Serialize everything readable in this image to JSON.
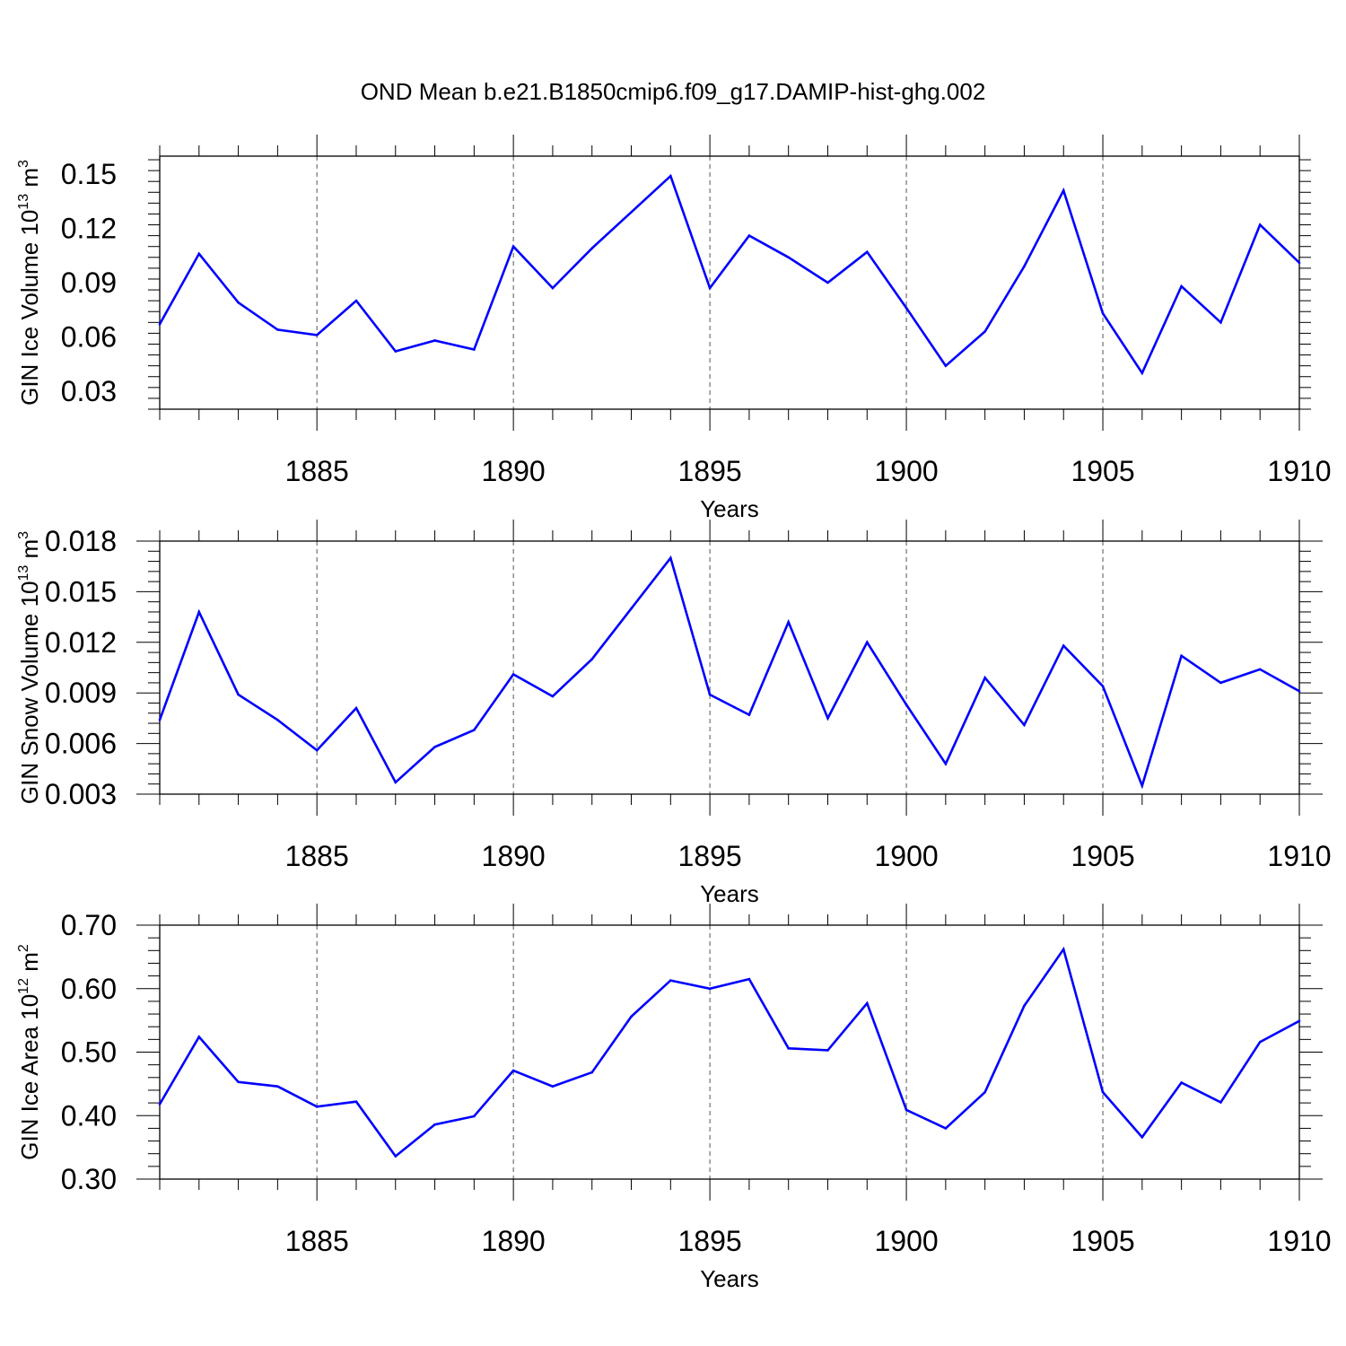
{
  "title": "OND Mean b.e21.B1850cmip6.f09_g17.DAMIP-hist-ghg.002",
  "colors": {
    "line": "#0000ff",
    "axis": "#000000",
    "grid": "#555555"
  },
  "chart_data": [
    {
      "type": "line",
      "xlabel": "Years",
      "ylabel": {
        "text": "GIN Ice Volume 10",
        "sup": "13",
        "unit": " m",
        "unit_sup": "3"
      },
      "xlim": [
        1881,
        1910
      ],
      "ylim": [
        0.02,
        0.16
      ],
      "xticks": [
        "1885",
        "1890",
        "1895",
        "1900",
        "1905",
        "1910"
      ],
      "yticks": [
        "0.03",
        "0.06",
        "0.09",
        "0.12",
        "0.15"
      ],
      "grid_x": true,
      "x": [
        1881,
        1882,
        1883,
        1884,
        1885,
        1886,
        1887,
        1888,
        1889,
        1890,
        1891,
        1892,
        1893,
        1894,
        1895,
        1896,
        1897,
        1898,
        1899,
        1900,
        1901,
        1902,
        1903,
        1904,
        1905,
        1906,
        1907,
        1908,
        1909,
        1910
      ],
      "series": [
        {
          "values": [
            0.067,
            0.106,
            0.079,
            0.064,
            0.061,
            0.08,
            0.052,
            0.058,
            0.053,
            0.11,
            0.087,
            0.109,
            0.129,
            0.149,
            0.087,
            0.116,
            0.104,
            0.09,
            0.107,
            0.076,
            0.044,
            0.063,
            0.099,
            0.141,
            0.073,
            0.04,
            0.088,
            0.068,
            0.122,
            0.101
          ]
        }
      ]
    },
    {
      "type": "line",
      "xlabel": "Years",
      "ylabel": {
        "text": "GIN Snow Volume 10",
        "sup": "13",
        "unit": " m",
        "unit_sup": "3"
      },
      "xlim": [
        1881,
        1910
      ],
      "ylim": [
        0.003,
        0.018
      ],
      "xticks": [
        "1885",
        "1890",
        "1895",
        "1900",
        "1905",
        "1910"
      ],
      "yticks": [
        "0.003",
        "0.006",
        "0.009",
        "0.012",
        "0.015",
        "0.018"
      ],
      "grid_x": true,
      "x": [
        1881,
        1882,
        1883,
        1884,
        1885,
        1886,
        1887,
        1888,
        1889,
        1890,
        1891,
        1892,
        1893,
        1894,
        1895,
        1896,
        1897,
        1898,
        1899,
        1900,
        1901,
        1902,
        1903,
        1904,
        1905,
        1906,
        1907,
        1908,
        1909,
        1910
      ],
      "series": [
        {
          "values": [
            0.0074,
            0.0138,
            0.0089,
            0.0074,
            0.0056,
            0.0081,
            0.0037,
            0.0058,
            0.0068,
            0.0101,
            0.0088,
            0.011,
            0.014,
            0.017,
            0.0089,
            0.0077,
            0.0132,
            0.0075,
            0.012,
            0.0083,
            0.0048,
            0.0099,
            0.0071,
            0.0118,
            0.0094,
            0.0035,
            0.0112,
            0.0096,
            0.0104,
            0.0091
          ]
        }
      ]
    },
    {
      "type": "line",
      "xlabel": "Years",
      "ylabel": {
        "text": "GIN Ice Area 10",
        "sup": "12",
        "unit": " m",
        "unit_sup": "2"
      },
      "xlim": [
        1881,
        1910
      ],
      "ylim": [
        0.3,
        0.7
      ],
      "xticks": [
        "1885",
        "1890",
        "1895",
        "1900",
        "1905",
        "1910"
      ],
      "yticks": [
        "0.30",
        "0.40",
        "0.50",
        "0.60",
        "0.70"
      ],
      "grid_x": true,
      "x": [
        1881,
        1882,
        1883,
        1884,
        1885,
        1886,
        1887,
        1888,
        1889,
        1890,
        1891,
        1892,
        1893,
        1894,
        1895,
        1896,
        1897,
        1898,
        1899,
        1900,
        1901,
        1902,
        1903,
        1904,
        1905,
        1906,
        1907,
        1908,
        1909,
        1910
      ],
      "series": [
        {
          "values": [
            0.418,
            0.524,
            0.453,
            0.446,
            0.414,
            0.422,
            0.336,
            0.386,
            0.399,
            0.471,
            0.446,
            0.468,
            0.556,
            0.613,
            0.6,
            0.615,
            0.506,
            0.503,
            0.577,
            0.409,
            0.38,
            0.437,
            0.573,
            0.662,
            0.437,
            0.366,
            0.452,
            0.421,
            0.516,
            0.549
          ]
        }
      ]
    }
  ]
}
